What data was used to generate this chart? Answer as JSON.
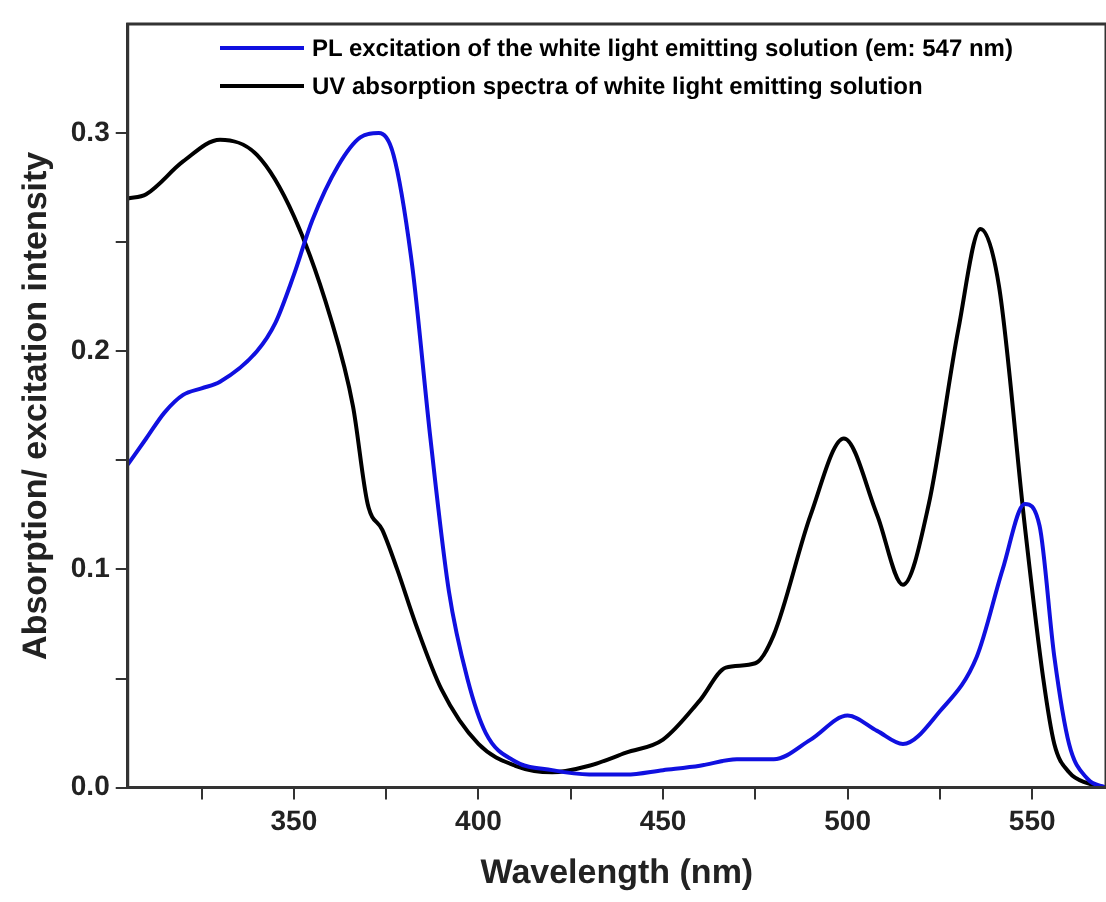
{
  "chart_data": {
    "type": "line",
    "xlabel": "Wavelength (nm)",
    "ylabel": "Absorption/ excitation intensity",
    "xlim": [
      305,
      570
    ],
    "ylim": [
      0,
      0.35
    ],
    "xticks": [
      {
        "value": 325,
        "label": null
      },
      350,
      {
        "value": 375,
        "label": null
      },
      400,
      {
        "value": 425,
        "label": null
      },
      450,
      {
        "value": 475,
        "label": null
      },
      500,
      {
        "value": 525,
        "label": null
      },
      550
    ],
    "yticks": [
      "0.0",
      {
        "value": 0.05,
        "label": null
      },
      0.1,
      {
        "value": 0.15,
        "label": null
      },
      0.2,
      {
        "value": 0.25,
        "label": null
      },
      0.3
    ],
    "grid": false,
    "legend": "top left",
    "marker": "none",
    "line_style": "solid",
    "series": [
      {
        "name": "PL excitation of the white light emitting solution (em: 547 nm)",
        "color": "#1010e0",
        "x": [
          305,
          310,
          315,
          320,
          325,
          330,
          340,
          345,
          350,
          355,
          362,
          368,
          373,
          377,
          382,
          387,
          392,
          397,
          402,
          410,
          420,
          430,
          440,
          450,
          460,
          470,
          480,
          490,
          500,
          508,
          515,
          525,
          535,
          542,
          548,
          552,
          556,
          560,
          565,
          570
        ],
        "values": [
          0.148,
          0.16,
          0.172,
          0.18,
          0.183,
          0.186,
          0.2,
          0.213,
          0.235,
          0.26,
          0.285,
          0.298,
          0.3,
          0.29,
          0.24,
          0.16,
          0.09,
          0.05,
          0.025,
          0.012,
          0.008,
          0.006,
          0.006,
          0.008,
          0.01,
          0.013,
          0.013,
          0.022,
          0.033,
          0.026,
          0.02,
          0.035,
          0.06,
          0.1,
          0.13,
          0.12,
          0.06,
          0.02,
          0.004,
          0
        ]
      },
      {
        "name": "UV absorption spectra of white light emitting solution",
        "color": "#000000",
        "x": [
          305,
          310,
          320,
          330,
          340,
          350,
          360,
          366,
          370,
          374,
          378,
          383,
          390,
          400,
          410,
          420,
          430,
          440,
          450,
          460,
          467,
          475,
          480,
          490,
          499,
          508,
          515,
          522,
          530,
          536,
          541,
          548,
          553,
          556,
          560,
          565,
          570
        ],
        "values": [
          0.27,
          0.272,
          0.287,
          0.297,
          0.29,
          0.262,
          0.215,
          0.175,
          0.13,
          0.118,
          0.1,
          0.075,
          0.045,
          0.02,
          0.01,
          0.007,
          0.01,
          0.016,
          0.022,
          0.04,
          0.055,
          0.057,
          0.07,
          0.125,
          0.16,
          0.125,
          0.093,
          0.13,
          0.21,
          0.256,
          0.23,
          0.12,
          0.05,
          0.02,
          0.007,
          0.002,
          0
        ]
      }
    ]
  }
}
